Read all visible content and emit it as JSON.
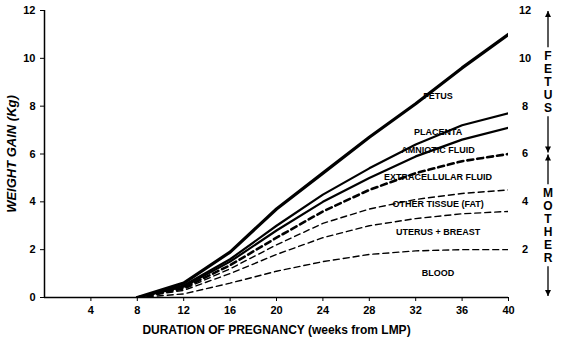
{
  "chart_data": {
    "type": "line",
    "x_label": "DURATION OF PREGNANCY (weeks from LMP)",
    "y_label": "WEIGHT GAIN (Kg)",
    "color": "#000000",
    "stacked": true,
    "grid": false,
    "x": [
      8,
      12,
      16,
      20,
      24,
      28,
      32,
      36,
      40
    ],
    "series": [
      {
        "name": "BLOOD",
        "line_style": "dashed",
        "values": [
          0,
          0.15,
          0.6,
          1.1,
          1.5,
          1.8,
          1.95,
          2.0,
          2.0
        ]
      },
      {
        "name": "UTERUS + BREAST",
        "line_style": "dashed",
        "values": [
          0,
          0.15,
          0.4,
          0.7,
          1.0,
          1.2,
          1.35,
          1.5,
          1.6
        ]
      },
      {
        "name": "OTHER TISSUE (FAT)",
        "line_style": "dashed",
        "values": [
          0,
          0.05,
          0.2,
          0.4,
          0.6,
          0.7,
          0.8,
          0.85,
          0.9
        ]
      },
      {
        "name": "EXTRACELLULAR FLUID",
        "line_style": "dashed",
        "values": [
          0,
          0.05,
          0.15,
          0.3,
          0.5,
          0.8,
          1.1,
          1.35,
          1.5
        ]
      },
      {
        "name": "AMNIOTIC FLUID",
        "line_style": "solid",
        "values": [
          0,
          0.05,
          0.15,
          0.3,
          0.4,
          0.5,
          0.7,
          0.9,
          1.1
        ]
      },
      {
        "name": "PLACENTA",
        "line_style": "solid",
        "values": [
          0,
          0.05,
          0.1,
          0.2,
          0.3,
          0.4,
          0.5,
          0.6,
          0.6
        ]
      },
      {
        "name": "FETUS",
        "line_style": "solid",
        "values": [
          0,
          0.1,
          0.3,
          0.7,
          0.9,
          1.3,
          1.7,
          2.4,
          3.3
        ]
      }
    ],
    "xlim": [
      0,
      40
    ],
    "xticks": [
      4,
      8,
      12,
      16,
      20,
      24,
      28,
      32,
      36,
      40
    ],
    "ylim": [
      0,
      12
    ],
    "yticks": [
      0,
      2,
      4,
      6,
      8,
      10,
      12
    ],
    "y2lim": [
      0,
      12
    ],
    "y2ticks": [
      2,
      4,
      6,
      8,
      10,
      12
    ],
    "annotations": [
      "FETUS",
      "MOTHER"
    ]
  }
}
